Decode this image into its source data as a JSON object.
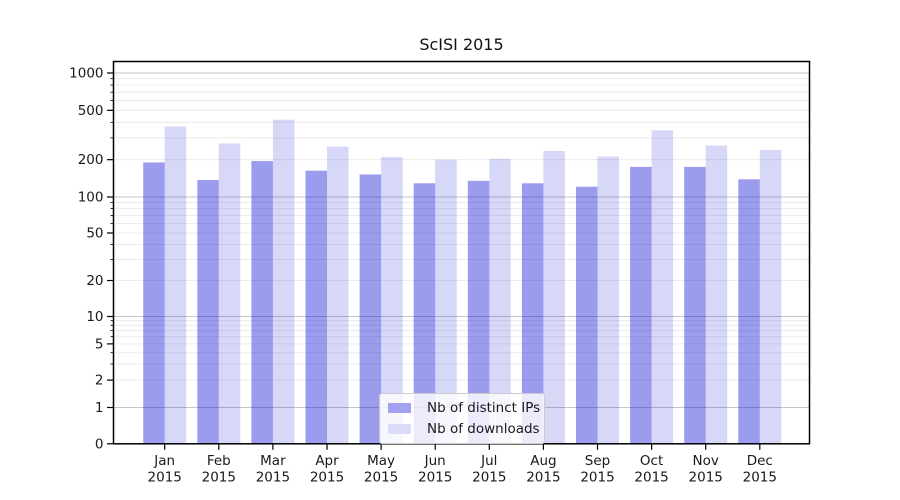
{
  "chart_data": {
    "type": "bar",
    "title": "ScISI 2015",
    "months": [
      "Jan",
      "Feb",
      "Mar",
      "Apr",
      "May",
      "Jun",
      "Jul",
      "Aug",
      "Sep",
      "Oct",
      "Nov",
      "Dec"
    ],
    "year": "2015",
    "series": [
      {
        "name": "Nb of distinct IPs",
        "color_hex": "#a1a1ef",
        "color_rgba": "rgba(20,20,215,0.42)",
        "values": [
          190,
          137,
          195,
          163,
          152,
          129,
          135,
          129,
          121,
          175,
          175,
          139
        ]
      },
      {
        "name": "Nb of downloads",
        "color_hex": "#dcdcf9",
        "color_rgba": "rgba(20,20,215,0.17)",
        "values": [
          370,
          270,
          420,
          255,
          210,
          200,
          203,
          235,
          212,
          345,
          260,
          240
        ]
      }
    ],
    "yscale": "symlog",
    "yticks": [
      0,
      1,
      2,
      5,
      10,
      20,
      50,
      100,
      200,
      500,
      1000
    ],
    "ylim": [
      0,
      1200
    ],
    "grid": true,
    "legend_position": "lower center",
    "colors": {
      "spine": "#000000",
      "major_grid": "#c6c6c6",
      "minor_grid": "#ececec",
      "tick_label": "#1a1a1a"
    }
  }
}
